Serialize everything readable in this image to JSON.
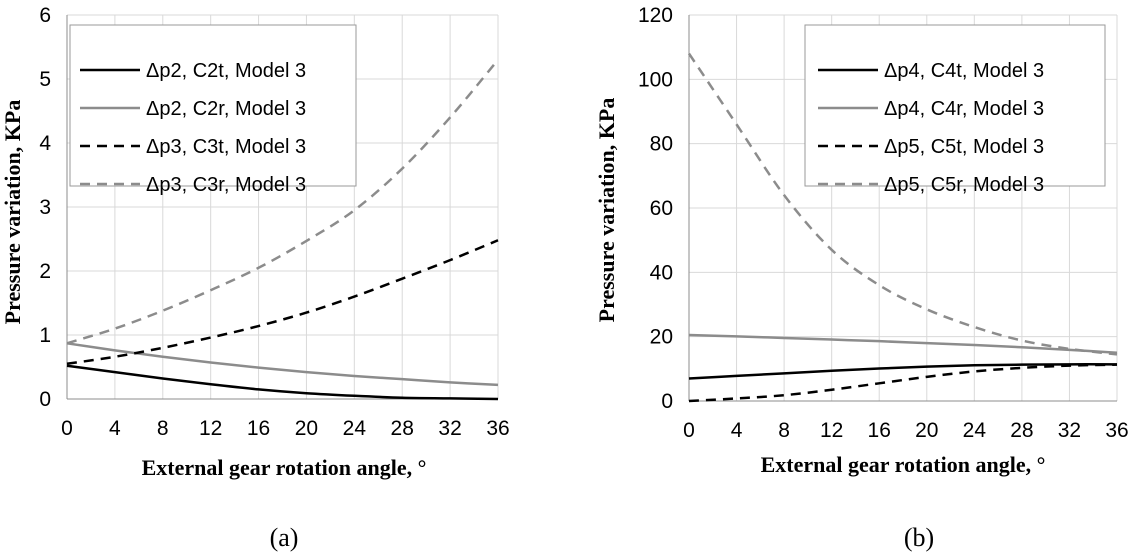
{
  "chart_data": [
    {
      "type": "line",
      "panel_label": "(a)",
      "xlabel": "External  gear rotation  angle, °",
      "ylabel": "Pressure  variation,  KPa",
      "xlim": [
        0,
        36
      ],
      "ylim": [
        0,
        6
      ],
      "xticks": [
        0,
        4,
        8,
        12,
        16,
        20,
        24,
        28,
        32,
        36
      ],
      "yticks": [
        0,
        1,
        2,
        3,
        4,
        5,
        6
      ],
      "grid": true,
      "legend_position": "top-left",
      "x": [
        0,
        4,
        8,
        12,
        16,
        20,
        24,
        28,
        32,
        36
      ],
      "series": [
        {
          "name": "Δp2, C2t, Model 3",
          "color": "#000000",
          "dash": "solid",
          "values": [
            0.52,
            0.42,
            0.32,
            0.23,
            0.15,
            0.09,
            0.05,
            0.02,
            0.01,
            0.0
          ]
        },
        {
          "name": "Δp2, C2r, Model 3",
          "color": "#8c8c8c",
          "dash": "solid",
          "values": [
            0.87,
            0.76,
            0.66,
            0.57,
            0.49,
            0.42,
            0.36,
            0.31,
            0.26,
            0.22
          ]
        },
        {
          "name": "Δp3, C3t, Model 3",
          "color": "#000000",
          "dash": "dashed",
          "values": [
            0.55,
            0.66,
            0.8,
            0.96,
            1.14,
            1.35,
            1.6,
            1.88,
            2.17,
            2.48
          ]
        },
        {
          "name": "Δp3, C3r, Model 3",
          "color": "#8c8c8c",
          "dash": "dashed",
          "values": [
            0.87,
            1.1,
            1.38,
            1.7,
            2.05,
            2.47,
            2.95,
            3.6,
            4.4,
            5.3
          ]
        }
      ]
    },
    {
      "type": "line",
      "panel_label": "(b)",
      "xlabel": "External  gear rotation  angle, °",
      "ylabel": "Pressure  variation,  KPa",
      "xlim": [
        0,
        36
      ],
      "ylim": [
        0,
        120
      ],
      "xticks": [
        0,
        4,
        8,
        12,
        16,
        20,
        24,
        28,
        32,
        36
      ],
      "yticks": [
        0,
        20,
        40,
        60,
        80,
        100,
        120
      ],
      "grid": true,
      "legend_position": "top-right",
      "x": [
        0,
        4,
        8,
        12,
        16,
        20,
        24,
        28,
        32,
        36
      ],
      "series": [
        {
          "name": "Δp4, C4t, Model 3",
          "color": "#000000",
          "dash": "solid",
          "values": [
            7,
            7.8,
            8.6,
            9.4,
            10.1,
            10.7,
            11.1,
            11.3,
            11.4,
            11.4
          ]
        },
        {
          "name": "Δp4, C4r, Model 3",
          "color": "#8c8c8c",
          "dash": "solid",
          "values": [
            20.5,
            20.1,
            19.6,
            19.1,
            18.6,
            18.0,
            17.4,
            16.7,
            15.9,
            15.0
          ]
        },
        {
          "name": "Δp5, C5t, Model 3",
          "color": "#000000",
          "dash": "dashed",
          "values": [
            0,
            0.8,
            1.8,
            3.5,
            5.5,
            7.5,
            9.2,
            10.3,
            11.0,
            11.3
          ]
        },
        {
          "name": "Δp5, C5r, Model 3",
          "color": "#8c8c8c",
          "dash": "dashed",
          "values": [
            108,
            86,
            64,
            47,
            36,
            28.5,
            23,
            18.8,
            16.2,
            14.5
          ]
        }
      ]
    }
  ]
}
